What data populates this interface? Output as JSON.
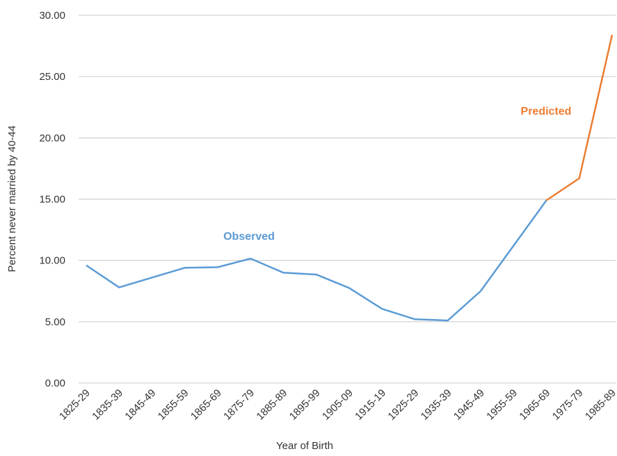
{
  "chart_data": {
    "type": "line",
    "x_label": "Year of Birth",
    "y_label": "Percent never married by 40-44",
    "categories": [
      "1825-29",
      "1835-39",
      "1845-49",
      "1855-59",
      "1865-69",
      "1875-79",
      "1885-89",
      "1895-99",
      "1905-09",
      "1915-19",
      "1925-29",
      "1935-39",
      "1945-49",
      "1955-59",
      "1965-69",
      "1975-79",
      "1985-89"
    ],
    "series": [
      {
        "name": "Observed",
        "color": "#5b9bd5",
        "values": [
          9.6,
          7.8,
          8.6,
          9.4,
          9.45,
          10.15,
          9.0,
          8.85,
          7.75,
          6.05,
          5.2,
          5.1,
          7.5,
          11.2,
          14.9,
          null,
          null
        ]
      },
      {
        "name": "Predicted",
        "color": "#ed7d31",
        "values": [
          null,
          null,
          null,
          null,
          null,
          null,
          null,
          null,
          null,
          null,
          null,
          null,
          null,
          null,
          14.9,
          16.7,
          28.4
        ]
      }
    ],
    "ylim": [
      0,
      30
    ],
    "yticks": [
      {
        "value": 0,
        "label": "0.00"
      },
      {
        "value": 5,
        "label": "5.00"
      },
      {
        "value": 10,
        "label": "10.00"
      },
      {
        "value": 15,
        "label": "15.00"
      },
      {
        "value": 20,
        "label": "20.00"
      },
      {
        "value": 25,
        "label": "25.00"
      },
      {
        "value": 30,
        "label": "30.00"
      }
    ],
    "grid": true
  }
}
